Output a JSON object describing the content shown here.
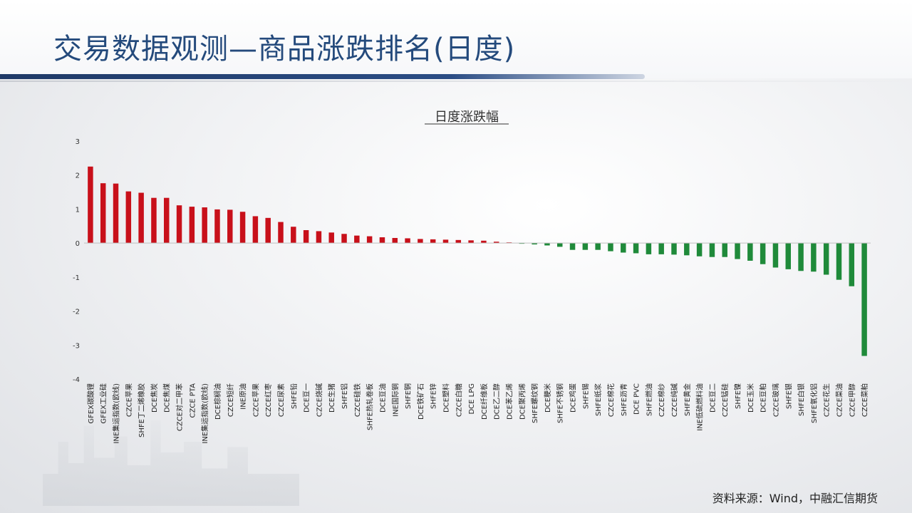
{
  "page": {
    "title": "交易数据观测—商品涨跌排名(日度)",
    "source": "资料来源：Wind，中融汇信期货"
  },
  "colors": {
    "title": "#244a7c",
    "positive_bar": "#c8101a",
    "negative_bar": "#1f8a3a",
    "accent_line": "#1f3a67"
  },
  "chart_data": {
    "type": "bar",
    "title": "日度涨跌幅",
    "xlabel": "",
    "ylabel": "",
    "ylim": [
      -4,
      3
    ],
    "yticks": [
      3,
      2,
      1,
      0,
      -1,
      -2,
      -3,
      -4
    ],
    "grid": false,
    "categories": [
      "GFEX碳酸锂",
      "GFEX工业硅",
      "INE集运指数(欧线)",
      "CZCE苹果",
      "SHFE丁二烯橡胶",
      "DCE焦炭",
      "DCE焦煤",
      "CZCE对二甲苯",
      "CZCE PTA",
      "INE集运指数(欧线)",
      "DCE棕榈油",
      "CZCE短纤",
      "INE原油",
      "CZCE苹果",
      "CZCE红枣",
      "CZCE尿素",
      "SHFE铅",
      "DCE豆一",
      "CZCE烧碱",
      "DCE生猪",
      "SHFE铝",
      "CZCE硅铁",
      "SHFE热轧卷板",
      "DCE豆油",
      "INE国际铜",
      "SHFE铜",
      "DCE铁矿石",
      "SHFE锌",
      "DCE塑料",
      "CZCE白糖",
      "DCE LPG",
      "DCE纤维板",
      "DCE乙二醇",
      "DCE苯乙烯",
      "DCE聚丙烯",
      "SHFE螺纹钢",
      "DCE粳米",
      "SHFE不锈钢",
      "DCE鸡蛋",
      "SHFE锡",
      "SHFE纸浆",
      "CZCE棉花",
      "SHFE沥青",
      "DCE PVC",
      "SHFE燃油",
      "CZCE棉纱",
      "CZCE纯碱",
      "SHFE黄金",
      "INE低硫燃料油",
      "DCE豆二",
      "CZCE锰硅",
      "SHFE镍",
      "DCE玉米",
      "DCE豆粕",
      "CZCE玻璃",
      "SHFE银",
      "SHFE白银",
      "SHFE氧化铝",
      "CZCE花生",
      "CZCE菜油",
      "CZCE甲醇",
      "CZCE菜粕"
    ],
    "values": [
      2.25,
      1.76,
      1.75,
      1.52,
      1.48,
      1.33,
      1.33,
      1.11,
      1.07,
      1.05,
      0.99,
      0.98,
      0.92,
      0.79,
      0.74,
      0.62,
      0.48,
      0.38,
      0.35,
      0.31,
      0.27,
      0.22,
      0.2,
      0.17,
      0.15,
      0.14,
      0.12,
      0.11,
      0.1,
      0.09,
      0.08,
      0.07,
      0.04,
      0.02,
      -0.02,
      -0.04,
      -0.07,
      -0.11,
      -0.2,
      -0.2,
      -0.2,
      -0.24,
      -0.28,
      -0.3,
      -0.33,
      -0.33,
      -0.34,
      -0.36,
      -0.39,
      -0.41,
      -0.41,
      -0.47,
      -0.52,
      -0.62,
      -0.72,
      -0.77,
      -0.82,
      -0.84,
      -0.93,
      -1.08,
      -1.27,
      -3.32
    ]
  }
}
